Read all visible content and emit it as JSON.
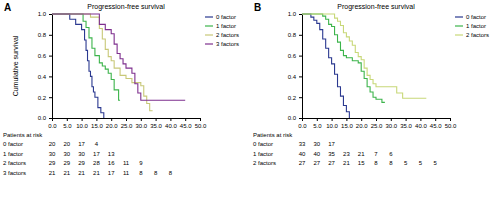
{
  "chart_data": [
    {
      "type": "line",
      "line_style": "step",
      "annotations": [
        "A"
      ],
      "title": "Progression-free survival",
      "y_label": "Cumulative survival",
      "xlim": [
        0,
        50
      ],
      "xticks": [
        {
          "value": 0,
          "label": "0.0"
        },
        {
          "value": 5,
          "label": "5.0"
        },
        {
          "value": 10,
          "label": "10.0"
        },
        {
          "value": 15,
          "label": "15.0"
        },
        {
          "value": 20,
          "label": "20.0"
        },
        {
          "value": 25,
          "label": "25.0"
        },
        {
          "value": 30,
          "label": "30.0"
        },
        {
          "value": 35,
          "label": "35.0"
        },
        {
          "value": 40,
          "label": "40.0"
        },
        {
          "value": 45,
          "label": "45.0"
        },
        {
          "value": 50,
          "label": "50.0"
        }
      ],
      "ylim": [
        0,
        1
      ],
      "yticks": [
        {
          "value": 0,
          "label": "0.0"
        },
        0.2,
        0.4,
        0.6,
        0.8,
        {
          "value": 1,
          "label": "1.0"
        }
      ],
      "legend": "outside-right",
      "series": [
        {
          "name": "0 factor",
          "color": "#2b3990",
          "x": [
            0,
            6,
            8,
            10,
            11,
            11.5,
            12,
            12.5,
            13,
            13.5,
            14,
            14.5,
            15.5,
            16.5,
            17.5
          ],
          "values": [
            1,
            0.95,
            0.9,
            0.85,
            0.75,
            0.65,
            0.55,
            0.45,
            0.4,
            0.3,
            0.25,
            0.2,
            0.1,
            0.05,
            0
          ]
        },
        {
          "name": "1 factor",
          "color": "#3cb44b",
          "x": [
            0,
            10.5,
            11.5,
            12.5,
            13.5,
            14.5,
            16,
            17,
            18,
            19,
            20,
            21,
            22.5,
            23
          ],
          "values": [
            1,
            0.93,
            0.87,
            0.77,
            0.67,
            0.6,
            0.53,
            0.5,
            0.47,
            0.43,
            0.37,
            0.27,
            0.17,
            0.17
          ]
        },
        {
          "name": "2 factors",
          "color": "#c8c878",
          "x": [
            0,
            13,
            16,
            17,
            18,
            19,
            20,
            21,
            23,
            25,
            27,
            30,
            31,
            32,
            33,
            34
          ],
          "values": [
            1,
            0.97,
            0.86,
            0.76,
            0.66,
            0.59,
            0.55,
            0.48,
            0.41,
            0.38,
            0.34,
            0.31,
            0.21,
            0.14,
            0.07,
            0.07
          ]
        },
        {
          "name": "3 factors",
          "color": "#7e2f8e",
          "x": [
            0,
            16,
            18,
            20,
            21,
            22,
            23,
            24,
            25,
            27,
            28,
            29,
            30,
            45
          ],
          "values": [
            1,
            0.9,
            0.85,
            0.81,
            0.71,
            0.62,
            0.57,
            0.52,
            0.48,
            0.43,
            0.33,
            0.24,
            0.17,
            0.17
          ]
        }
      ],
      "at_risk": {
        "title": "Patients at risk",
        "x": [
          0,
          5,
          10,
          15,
          20,
          25,
          30,
          35,
          40
        ],
        "rows": [
          {
            "name": "0 factor",
            "values": [
              20,
              20,
              17,
              4
            ]
          },
          {
            "name": "1 factor",
            "values": [
              30,
              30,
              30,
              17,
              13
            ]
          },
          {
            "name": "2 factors",
            "values": [
              29,
              29,
              29,
              28,
              16,
              11,
              9
            ]
          },
          {
            "name": "3 factors",
            "values": [
              21,
              21,
              21,
              21,
              17,
              11,
              8,
              8,
              8
            ]
          }
        ]
      }
    },
    {
      "type": "line",
      "line_style": "step",
      "annotations": [
        "B"
      ],
      "title": "Progression-free survival",
      "xlim": [
        0,
        50
      ],
      "xticks": [
        {
          "value": 0,
          "label": "0.0"
        },
        {
          "value": 5,
          "label": "5.0"
        },
        {
          "value": 10,
          "label": "10.0"
        },
        {
          "value": 15,
          "label": "15.0"
        },
        {
          "value": 20,
          "label": "20.0"
        },
        {
          "value": 25,
          "label": "25.0"
        },
        {
          "value": 30,
          "label": "30.0"
        },
        {
          "value": 35,
          "label": "35.0"
        },
        {
          "value": 40,
          "label": "40.0"
        },
        {
          "value": 45,
          "label": "45.0"
        },
        {
          "value": 50,
          "label": "50.0"
        }
      ],
      "ylim": [
        0,
        1
      ],
      "yticks": [
        {
          "value": 0,
          "label": "0.0"
        },
        0.2,
        0.4,
        0.6,
        0.8,
        {
          "value": 1,
          "label": "1.0"
        }
      ],
      "legend": "outside-right",
      "series": [
        {
          "name": "0 factor",
          "color": "#2b3990",
          "x": [
            0,
            3,
            4,
            5,
            6,
            7,
            8,
            9,
            10,
            11,
            12,
            13,
            14,
            15,
            16
          ],
          "values": [
            1,
            0.97,
            0.94,
            0.91,
            0.85,
            0.76,
            0.67,
            0.58,
            0.52,
            0.42,
            0.3,
            0.21,
            0.12,
            0.06,
            0
          ]
        },
        {
          "name": "1 factor",
          "color": "#3cb44b",
          "x": [
            0,
            7,
            8,
            9,
            10,
            11,
            12,
            13,
            14,
            15,
            17,
            19,
            20,
            21,
            22,
            23,
            24,
            25,
            27,
            28
          ],
          "values": [
            1,
            0.98,
            0.95,
            0.9,
            0.88,
            0.8,
            0.73,
            0.65,
            0.6,
            0.58,
            0.55,
            0.53,
            0.45,
            0.38,
            0.3,
            0.25,
            0.2,
            0.18,
            0.15,
            0.15
          ]
        },
        {
          "name": "2 factors",
          "color": "#c8d878",
          "x": [
            0,
            11,
            12,
            13,
            14,
            15,
            16,
            17,
            18,
            19,
            20,
            21,
            22,
            23,
            24,
            25,
            32,
            34,
            42
          ],
          "values": [
            1,
            0.96,
            0.93,
            0.89,
            0.82,
            0.78,
            0.74,
            0.7,
            0.63,
            0.59,
            0.56,
            0.48,
            0.41,
            0.37,
            0.33,
            0.3,
            0.24,
            0.19,
            0.19
          ]
        }
      ],
      "at_risk": {
        "title": "Patients at risk",
        "x": [
          0,
          5,
          10,
          15,
          20,
          25,
          30,
          35,
          40,
          45
        ],
        "rows": [
          {
            "name": "0 factor",
            "values": [
              33,
              30,
              17
            ]
          },
          {
            "name": "1 factor",
            "values": [
              40,
              40,
              35,
              23,
              21,
              7,
              6
            ]
          },
          {
            "name": "2 factors",
            "values": [
              27,
              27,
              27,
              21,
              15,
              8,
              8,
              5,
              5,
              5
            ]
          }
        ]
      }
    }
  ]
}
